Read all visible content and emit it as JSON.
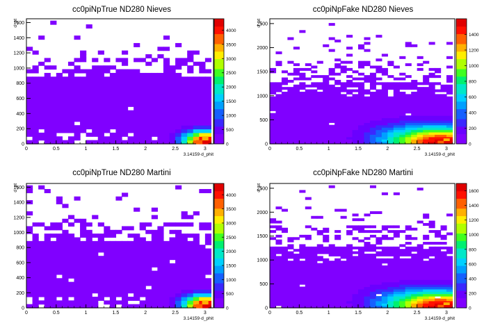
{
  "chart_data": [
    {
      "type": "heatmap",
      "title": "cc0piNpTrue ND280 Nieves",
      "xlabel": "3.14159·d_phit",
      "ylabel": "d_pt",
      "xlim": [
        0,
        3.14159
      ],
      "ylim": [
        0,
        1650
      ],
      "xticks": [
        0,
        0.5,
        1,
        1.5,
        2,
        2.5,
        3
      ],
      "yticks": [
        0,
        200,
        400,
        600,
        800,
        1000,
        1200,
        1400,
        1600
      ],
      "zlim": [
        0,
        4400
      ],
      "zticks": [
        0,
        500,
        1000,
        1500,
        2000,
        2500,
        3000,
        3500,
        4000
      ],
      "peak": {
        "x": 3.0,
        "y": 25,
        "value": 4300
      },
      "grid": false
    },
    {
      "type": "heatmap",
      "title": "cc0piNpFake ND280 Nieves",
      "xlabel": "3.14159·d_phit",
      "ylabel": "d_pt",
      "xlim": [
        0,
        3.14159
      ],
      "ylim": [
        0,
        2600
      ],
      "xticks": [
        0,
        0.5,
        1,
        1.5,
        2,
        2.5,
        3
      ],
      "yticks": [
        0,
        500,
        1000,
        1500,
        2000,
        2500
      ],
      "zlim": [
        0,
        1600
      ],
      "zticks": [
        0,
        200,
        400,
        600,
        800,
        1000,
        1200,
        1400
      ],
      "peak": {
        "x": 3.0,
        "y": 40,
        "value": 1550
      },
      "grid": false
    },
    {
      "type": "heatmap",
      "title": "cc0piNpTrue ND280 Martini",
      "xlabel": "3.14159·d_phit",
      "ylabel": "d_pt",
      "xlim": [
        0,
        3.14159
      ],
      "ylim": [
        0,
        1650
      ],
      "xticks": [
        0,
        0.5,
        1,
        1.5,
        2,
        2.5,
        3
      ],
      "yticks": [
        0,
        200,
        400,
        600,
        800,
        1000,
        1200,
        1400,
        1600
      ],
      "zlim": [
        0,
        4400
      ],
      "zticks": [
        0,
        500,
        1000,
        1500,
        2000,
        2500,
        3000,
        3500,
        4000
      ],
      "peak": {
        "x": 3.0,
        "y": 25,
        "value": 4300
      },
      "grid": false
    },
    {
      "type": "heatmap",
      "title": "cc0piNpFake ND280 Martini",
      "xlabel": "3.14159·d_phit",
      "ylabel": "d_pt",
      "xlim": [
        0,
        3.14159
      ],
      "ylim": [
        0,
        2600
      ],
      "xticks": [
        0,
        0.5,
        1,
        1.5,
        2,
        2.5,
        3
      ],
      "yticks": [
        0,
        500,
        1000,
        1500,
        2000,
        2500
      ],
      "zlim": [
        0,
        1700
      ],
      "zticks": [
        0,
        200,
        400,
        600,
        800,
        1000,
        1200,
        1400,
        1600
      ],
      "peak": {
        "x": 3.0,
        "y": 40,
        "value": 1650
      },
      "grid": false
    }
  ]
}
